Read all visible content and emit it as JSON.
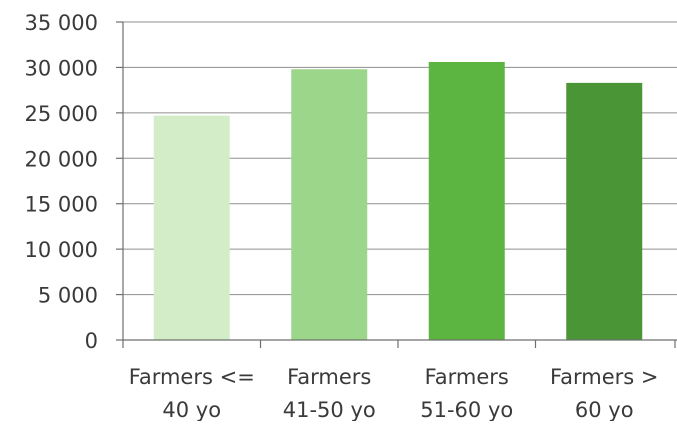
{
  "chart_data": {
    "type": "bar",
    "title": "",
    "xlabel": "",
    "ylabel": "",
    "categories": [
      [
        "Farmers <=",
        "40 yo"
      ],
      [
        "Farmers",
        "41-50 yo"
      ],
      [
        "Farmers",
        "51-60 yo"
      ],
      [
        "Farmers >",
        "60 yo"
      ]
    ],
    "values": [
      24700,
      29800,
      30600,
      28300
    ],
    "bar_colors": [
      "#d3edc9",
      "#9bd68a",
      "#5bb540",
      "#4a9636"
    ],
    "ylim": [
      0,
      35000
    ],
    "yticks": [
      0,
      5000,
      10000,
      15000,
      20000,
      25000,
      30000,
      35000
    ],
    "ytick_labels": [
      "0",
      "5 000",
      "10 000",
      "15 000",
      "20 000",
      "25 000",
      "30 000",
      "35 000"
    ],
    "grid": true,
    "legend": "none"
  }
}
